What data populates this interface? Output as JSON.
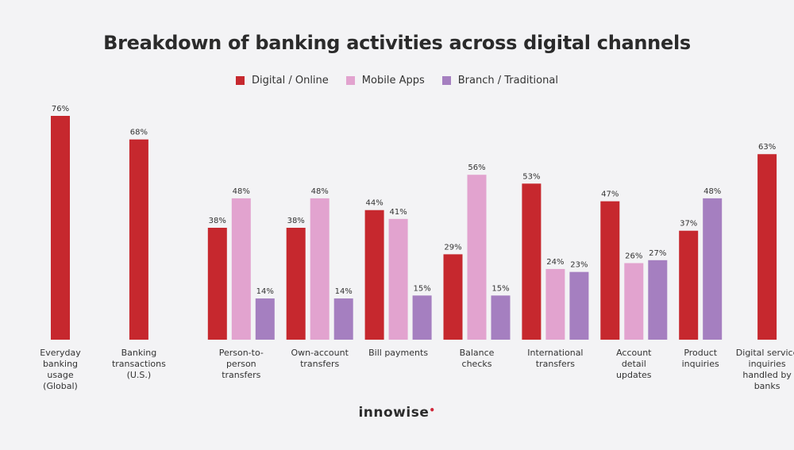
{
  "chart_data": {
    "type": "bar",
    "title": "Breakdown of banking activities across digital channels",
    "xlabel": "",
    "ylabel": "",
    "ylim": [
      0,
      76
    ],
    "legend_position": "top-center",
    "grid": false,
    "value_suffix": "%",
    "series": [
      {
        "name": "Digital / Online",
        "color": "#c6282e"
      },
      {
        "name": "Mobile Apps",
        "color": "#e2a3cf"
      },
      {
        "name": "Branch / Traditional",
        "color": "#a57fc0"
      }
    ],
    "groups": [
      {
        "label": [
          "Everyday",
          "banking",
          "usage",
          "(Global)"
        ],
        "bars": [
          {
            "series": 0,
            "value": 76
          }
        ]
      },
      {
        "label": [
          "Banking",
          "transactions",
          "(U.S.)"
        ],
        "bars": [
          {
            "series": 0,
            "value": 68
          }
        ]
      },
      {
        "label": [
          "Person-to-",
          "person",
          "transfers"
        ],
        "bars": [
          {
            "series": 0,
            "value": 38
          },
          {
            "series": 1,
            "value": 48
          },
          {
            "series": 2,
            "value": 14
          }
        ]
      },
      {
        "label": [
          "Own-account",
          "transfers"
        ],
        "bars": [
          {
            "series": 0,
            "value": 38
          },
          {
            "series": 1,
            "value": 48
          },
          {
            "series": 2,
            "value": 14
          }
        ]
      },
      {
        "label": [
          "Bill payments"
        ],
        "bars": [
          {
            "series": 0,
            "value": 44
          },
          {
            "series": 1,
            "value": 41
          },
          {
            "series": 2,
            "value": 15
          }
        ]
      },
      {
        "label": [
          "Balance",
          "checks"
        ],
        "bars": [
          {
            "series": 0,
            "value": 29
          },
          {
            "series": 1,
            "value": 56
          },
          {
            "series": 2,
            "value": 15
          }
        ]
      },
      {
        "label": [
          "International",
          "transfers"
        ],
        "bars": [
          {
            "series": 0,
            "value": 53
          },
          {
            "series": 1,
            "value": 24
          },
          {
            "series": 2,
            "value": 23
          }
        ]
      },
      {
        "label": [
          "Account",
          "detail",
          "updates"
        ],
        "bars": [
          {
            "series": 0,
            "value": 47
          },
          {
            "series": 1,
            "value": 26
          },
          {
            "series": 2,
            "value": 27
          }
        ]
      },
      {
        "label": [
          "Product",
          "inquiries"
        ],
        "bars": [
          {
            "series": 0,
            "value": 37
          },
          {
            "series": 2,
            "value": 48
          }
        ]
      },
      {
        "label": [
          "Digital service",
          "inquiries",
          "handled by",
          "banks"
        ],
        "bars": [
          {
            "series": 0,
            "value": 63
          }
        ]
      }
    ]
  },
  "brand": {
    "name": "innowise",
    "dot": "•"
  }
}
